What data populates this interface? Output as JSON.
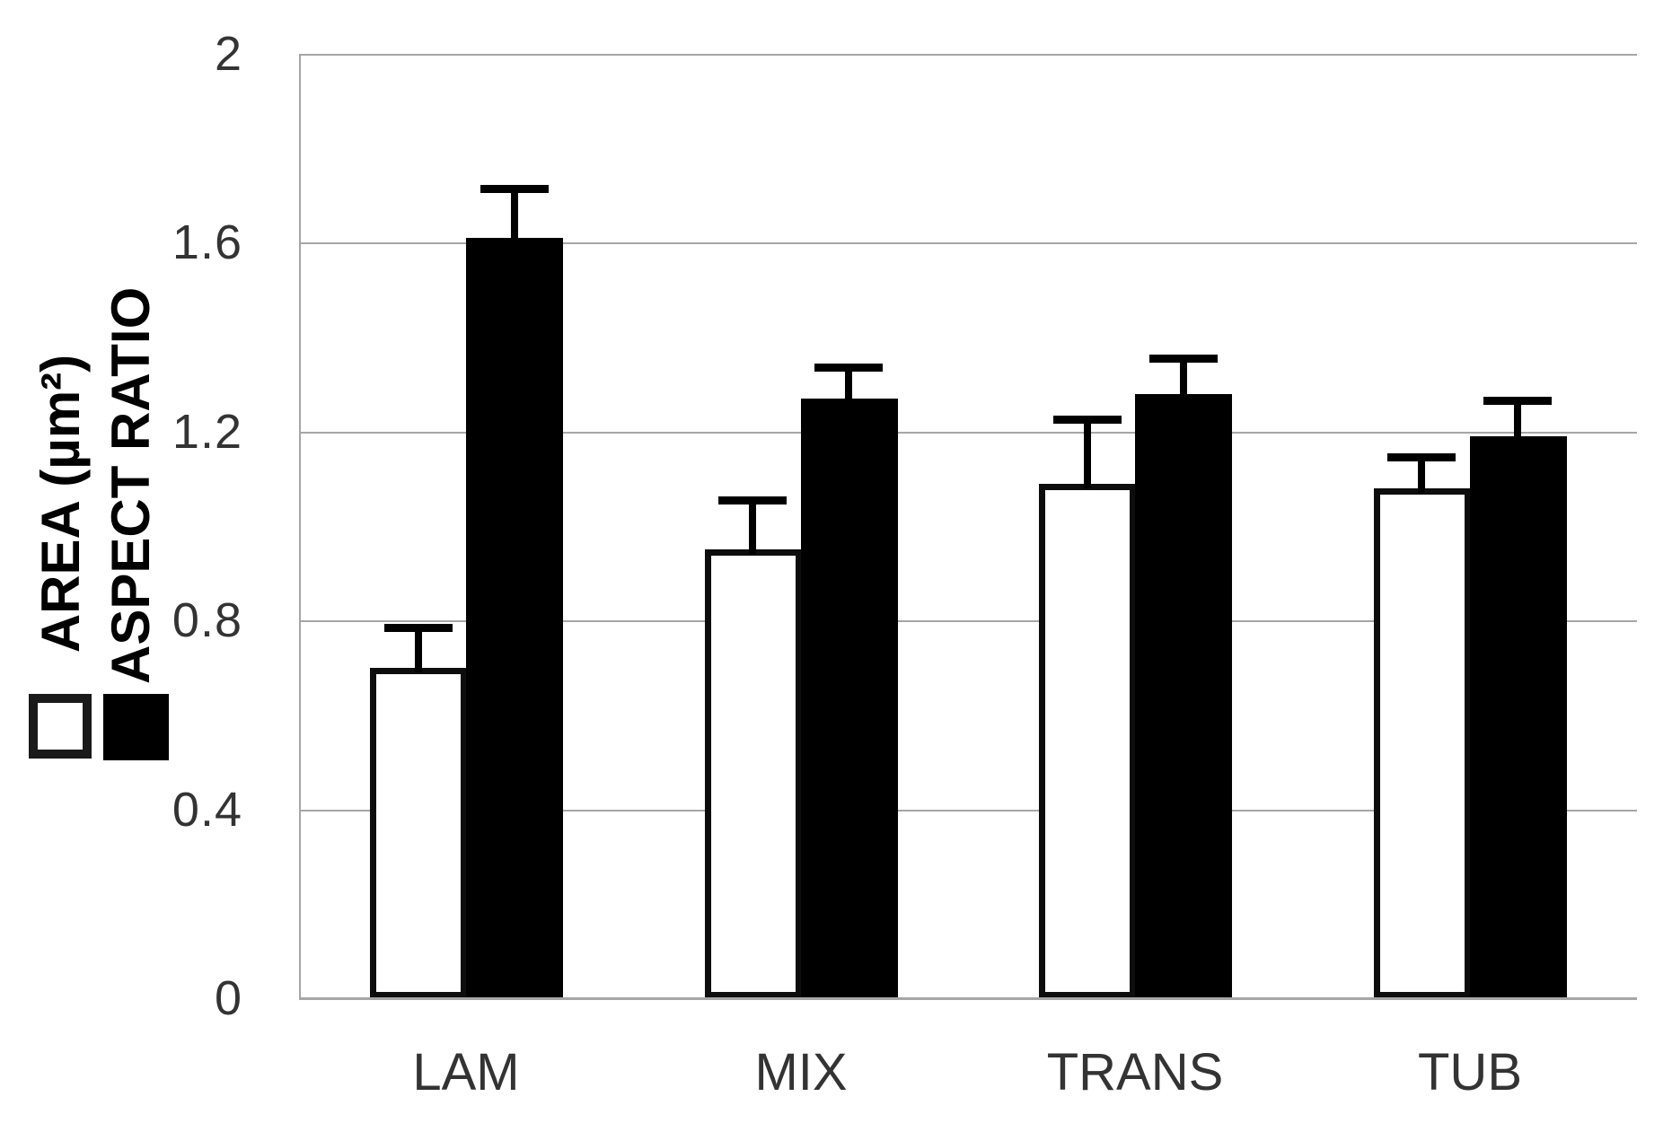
{
  "chart_data": {
    "type": "bar",
    "title": "",
    "categories": [
      "LAM",
      "MIX",
      "TRANS",
      "TUB"
    ],
    "series": [
      {
        "name": "AREA (µm²)",
        "swatch": "white",
        "fill": "#ffffff",
        "values": [
          0.7,
          0.95,
          1.09,
          1.08
        ],
        "errors_plus": [
          0.08,
          0.1,
          0.13,
          0.06
        ]
      },
      {
        "name": "ASPECT RATIO",
        "swatch": "black",
        "fill": "#000000",
        "values": [
          1.61,
          1.27,
          1.28,
          1.19
        ],
        "errors_plus": [
          0.1,
          0.06,
          0.07,
          0.07
        ]
      }
    ],
    "xlabel": "",
    "ylabel_lines": [
      "AREA (µm²)",
      "ASPECT RATIO"
    ],
    "ylim": [
      0,
      2
    ],
    "yticks": [
      {
        "value": 2,
        "label": "2"
      },
      {
        "value": 1.6,
        "label": "1.6"
      },
      {
        "value": 1.2,
        "label": "1.2"
      },
      {
        "value": 0.8,
        "label": "0.8"
      },
      {
        "value": 0.4,
        "label": "0.4"
      },
      {
        "value": 0,
        "label": "0"
      }
    ],
    "grid": true,
    "legend_position": "left of y-axis, below rotated axis titles",
    "error_bars": "upper only, capped",
    "colors": {
      "gridline": "#a6a6a6",
      "tick_text": "#333333",
      "bar_black": "#000000",
      "bar_white_border": "#0d0d0d",
      "background": "#ffffff"
    }
  }
}
